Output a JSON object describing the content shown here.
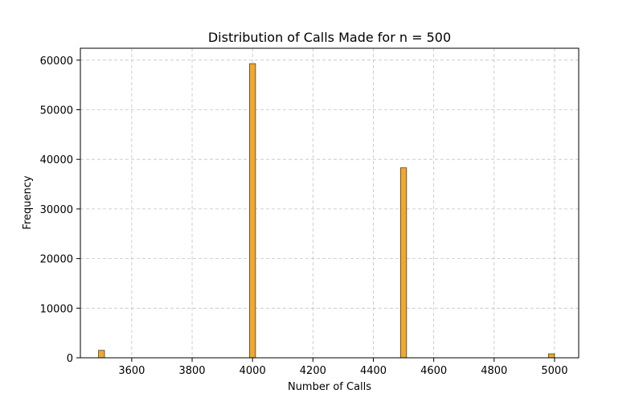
{
  "chart_data": {
    "type": "bar",
    "title": "Distribution of Calls Made for n = 500",
    "xlabel": "Number of Calls",
    "ylabel": "Frequency",
    "xlim": [
      3430,
      5080
    ],
    "ylim": [
      0,
      62400
    ],
    "xticks": [
      3600,
      3800,
      4000,
      4200,
      4400,
      4600,
      4800,
      5000
    ],
    "yticks": [
      0,
      10000,
      20000,
      30000,
      40000,
      50000,
      60000
    ],
    "grid": true,
    "bar_color": "#f0a830",
    "bar_edge_color": "#5a3a10",
    "bin_width": 20,
    "bars": [
      {
        "x": 3500,
        "value": 1500
      },
      {
        "x": 4000,
        "value": 59300
      },
      {
        "x": 4500,
        "value": 38300
      },
      {
        "x": 4990,
        "value": 800
      }
    ]
  }
}
